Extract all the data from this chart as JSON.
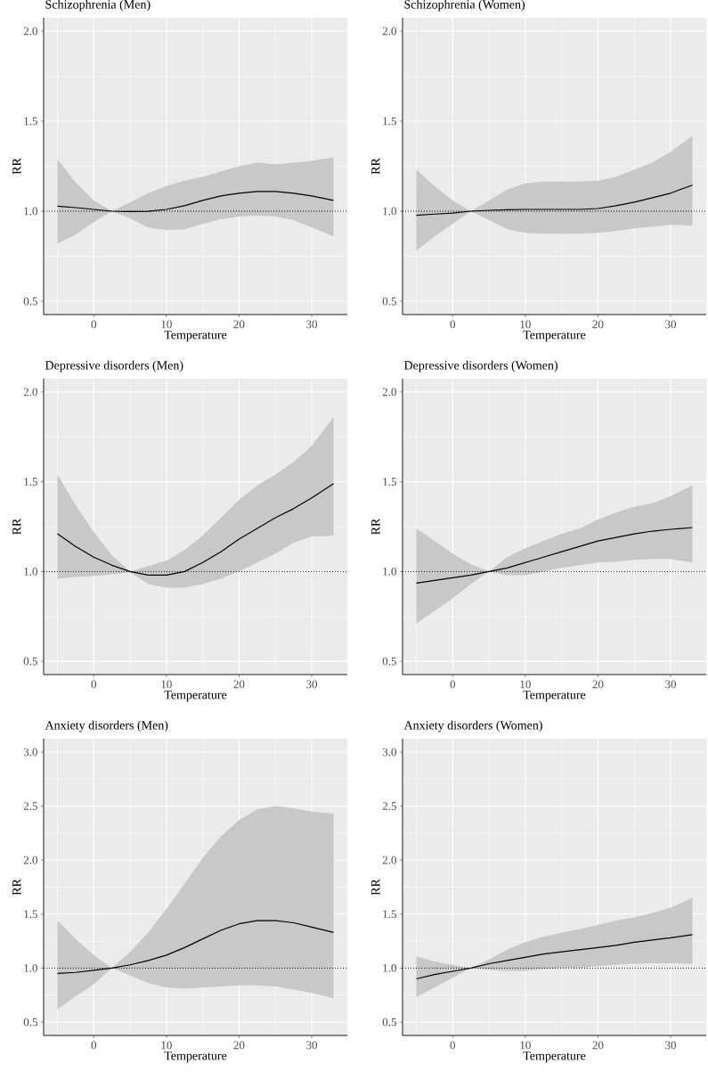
{
  "chart_data": [
    {
      "type": "line",
      "title": "Schizophrenia (Men)",
      "xlabel": "Temperature",
      "ylabel": "RR",
      "grid": true,
      "x": [
        -5,
        -2.5,
        0,
        2.5,
        5,
        7.5,
        10,
        12.5,
        15,
        17.5,
        20,
        22.5,
        25,
        27.5,
        30,
        33
      ],
      "series": [
        {
          "color": "#000000",
          "values": [
            1.028,
            1.02,
            1.01,
            1.0,
            0.998,
            0.999,
            1.01,
            1.03,
            1.06,
            1.085,
            1.1,
            1.11,
            1.11,
            1.1,
            1.085,
            1.06
          ],
          "lower": [
            0.82,
            0.87,
            0.94,
            1.0,
            0.96,
            0.91,
            0.895,
            0.9,
            0.93,
            0.955,
            0.97,
            0.975,
            0.97,
            0.95,
            0.91,
            0.86
          ],
          "upper": [
            1.29,
            1.16,
            1.06,
            1.0,
            1.05,
            1.1,
            1.14,
            1.17,
            1.19,
            1.22,
            1.25,
            1.27,
            1.26,
            1.27,
            1.28,
            1.3
          ]
        }
      ],
      "xlim": [
        -6.9,
        34.9
      ],
      "ylim": [
        0.426,
        2.074
      ],
      "xticks": [
        0,
        {
          "value": 5,
          "label": null
        },
        10,
        {
          "value": 15,
          "label": null
        },
        20,
        {
          "value": 25,
          "label": null
        },
        30,
        {
          "value": -5,
          "label": null
        }
      ],
      "yticks": [
        0.5,
        {
          "value": 0.75,
          "label": null
        },
        {
          "value": 1.0,
          "label": "1.0"
        },
        {
          "value": 1.25,
          "label": null
        },
        1.5,
        {
          "value": 1.75,
          "label": null
        },
        {
          "value": 2.0,
          "label": "2.0"
        }
      ],
      "ref_lines": [
        {
          "axis": "y",
          "value": 1,
          "line_style": "dotted",
          "color": "#000000"
        }
      ]
    },
    {
      "type": "line",
      "title": "Schizophrenia (Women)",
      "xlabel": "Temperature",
      "ylabel": "RR",
      "grid": true,
      "x": [
        -5,
        -2.5,
        0,
        2.5,
        5,
        7.5,
        10,
        12.5,
        15,
        17.5,
        20,
        22.5,
        25,
        27.5,
        30,
        33
      ],
      "series": [
        {
          "color": "#000000",
          "values": [
            0.977,
            0.984,
            0.99,
            1.0,
            1.005,
            1.008,
            1.01,
            1.01,
            1.01,
            1.01,
            1.015,
            1.03,
            1.05,
            1.075,
            1.1,
            1.145
          ],
          "lower": [
            0.78,
            0.86,
            0.93,
            1.0,
            0.95,
            0.9,
            0.88,
            0.875,
            0.875,
            0.875,
            0.88,
            0.89,
            0.905,
            0.915,
            0.925,
            0.92
          ],
          "upper": [
            1.23,
            1.14,
            1.06,
            1.0,
            1.06,
            1.12,
            1.155,
            1.165,
            1.165,
            1.165,
            1.17,
            1.19,
            1.23,
            1.27,
            1.33,
            1.42
          ]
        }
      ],
      "xlim": [
        -6.9,
        34.9
      ],
      "ylim": [
        0.426,
        2.074
      ],
      "xticks": [
        0,
        {
          "value": 5,
          "label": null
        },
        10,
        {
          "value": 15,
          "label": null
        },
        20,
        {
          "value": 25,
          "label": null
        },
        30,
        {
          "value": -5,
          "label": null
        }
      ],
      "yticks": [
        0.5,
        {
          "value": 0.75,
          "label": null
        },
        {
          "value": 1.0,
          "label": "1.0"
        },
        {
          "value": 1.25,
          "label": null
        },
        1.5,
        {
          "value": 1.75,
          "label": null
        },
        {
          "value": 2.0,
          "label": "2.0"
        }
      ],
      "ref_lines": [
        {
          "axis": "y",
          "value": 1,
          "line_style": "dotted",
          "color": "#000000"
        }
      ]
    },
    {
      "type": "line",
      "title": "Depressive disorders (Men)",
      "xlabel": "Temperature",
      "ylabel": "RR",
      "grid": true,
      "x": [
        -5,
        -2.5,
        0,
        2.5,
        5,
        7.5,
        10,
        12.5,
        15,
        17.5,
        20,
        22.5,
        25,
        27.5,
        30,
        33
      ],
      "series": [
        {
          "color": "#000000",
          "values": [
            1.21,
            1.14,
            1.08,
            1.035,
            1.0,
            0.98,
            0.98,
            1.0,
            1.05,
            1.11,
            1.18,
            1.24,
            1.3,
            1.35,
            1.41,
            1.49
          ],
          "lower": [
            0.96,
            0.97,
            0.975,
            0.985,
            0.995,
            0.93,
            0.91,
            0.91,
            0.93,
            0.96,
            1.0,
            1.05,
            1.1,
            1.16,
            1.195,
            1.2
          ],
          "upper": [
            1.54,
            1.37,
            1.22,
            1.09,
            1.0,
            1.03,
            1.06,
            1.12,
            1.2,
            1.3,
            1.4,
            1.48,
            1.54,
            1.61,
            1.7,
            1.86
          ]
        }
      ],
      "xlim": [
        -6.9,
        34.9
      ],
      "ylim": [
        0.426,
        2.074
      ],
      "xticks": [
        0,
        {
          "value": 5,
          "label": null
        },
        10,
        {
          "value": 15,
          "label": null
        },
        20,
        {
          "value": 25,
          "label": null
        },
        30,
        {
          "value": -5,
          "label": null
        }
      ],
      "yticks": [
        0.5,
        {
          "value": 0.75,
          "label": null
        },
        {
          "value": 1.0,
          "label": "1.0"
        },
        {
          "value": 1.25,
          "label": null
        },
        1.5,
        {
          "value": 1.75,
          "label": null
        },
        {
          "value": 2.0,
          "label": "2.0"
        }
      ],
      "ref_lines": [
        {
          "axis": "y",
          "value": 1,
          "line_style": "dotted",
          "color": "#000000"
        }
      ]
    },
    {
      "type": "line",
      "title": "Depressive disorders (Women)",
      "xlabel": "Temperature",
      "ylabel": "RR",
      "grid": true,
      "x": [
        -5,
        -2.5,
        0,
        2.5,
        5,
        7.5,
        10,
        12.5,
        15,
        17.5,
        20,
        22.5,
        25,
        27.5,
        30,
        33
      ],
      "series": [
        {
          "color": "#000000",
          "values": [
            0.935,
            0.95,
            0.965,
            0.98,
            1.0,
            1.02,
            1.05,
            1.08,
            1.11,
            1.14,
            1.17,
            1.19,
            1.21,
            1.225,
            1.235,
            1.245
          ],
          "lower": [
            0.71,
            0.78,
            0.85,
            0.93,
            1.0,
            0.98,
            0.98,
            1.0,
            1.02,
            1.035,
            1.05,
            1.055,
            1.065,
            1.07,
            1.07,
            1.05
          ],
          "upper": [
            1.24,
            1.17,
            1.1,
            1.04,
            1.0,
            1.08,
            1.13,
            1.17,
            1.21,
            1.24,
            1.29,
            1.33,
            1.36,
            1.38,
            1.42,
            1.48
          ]
        }
      ],
      "xlim": [
        -6.9,
        34.9
      ],
      "ylim": [
        0.426,
        2.074
      ],
      "xticks": [
        0,
        {
          "value": 5,
          "label": null
        },
        10,
        {
          "value": 15,
          "label": null
        },
        20,
        {
          "value": 25,
          "label": null
        },
        30,
        {
          "value": -5,
          "label": null
        }
      ],
      "yticks": [
        0.5,
        {
          "value": 0.75,
          "label": null
        },
        {
          "value": 1.0,
          "label": "1.0"
        },
        {
          "value": 1.25,
          "label": null
        },
        1.5,
        {
          "value": 1.75,
          "label": null
        },
        {
          "value": 2.0,
          "label": "2.0"
        }
      ],
      "ref_lines": [
        {
          "axis": "y",
          "value": 1,
          "line_style": "dotted",
          "color": "#000000"
        }
      ]
    },
    {
      "type": "line",
      "title": "Anxiety disorders (Men)",
      "xlabel": "Temperature",
      "ylabel": "RR",
      "grid": true,
      "x": [
        -5,
        -2.5,
        0,
        2.5,
        5,
        7.5,
        10,
        12.5,
        15,
        17.5,
        20,
        22.5,
        25,
        27.5,
        30,
        33
      ],
      "series": [
        {
          "color": "#000000",
          "values": [
            0.95,
            0.96,
            0.98,
            1.0,
            1.03,
            1.07,
            1.12,
            1.19,
            1.27,
            1.35,
            1.41,
            1.44,
            1.44,
            1.42,
            1.38,
            1.33
          ],
          "lower": [
            0.62,
            0.74,
            0.85,
            1.0,
            0.93,
            0.86,
            0.82,
            0.81,
            0.82,
            0.83,
            0.84,
            0.84,
            0.83,
            0.8,
            0.77,
            0.72
          ],
          "upper": [
            1.44,
            1.27,
            1.12,
            1.0,
            1.15,
            1.33,
            1.55,
            1.78,
            2.02,
            2.22,
            2.37,
            2.47,
            2.5,
            2.48,
            2.45,
            2.43
          ]
        }
      ],
      "xlim": [
        -6.9,
        34.9
      ],
      "ylim": [
        0.376,
        3.124
      ],
      "xticks": [
        0,
        {
          "value": 5,
          "label": null
        },
        10,
        {
          "value": 15,
          "label": null
        },
        20,
        {
          "value": 25,
          "label": null
        },
        30,
        {
          "value": -5,
          "label": null
        }
      ],
      "yticks": [
        0.5,
        {
          "value": 0.75,
          "label": null
        },
        {
          "value": 1.0,
          "label": "1.0"
        },
        {
          "value": 1.25,
          "label": null
        },
        1.5,
        {
          "value": 1.75,
          "label": null
        },
        {
          "value": 2.0,
          "label": "2.0"
        },
        {
          "value": 2.25,
          "label": null
        },
        2.5,
        {
          "value": 2.75,
          "label": null
        },
        {
          "value": 3.0,
          "label": "3.0"
        }
      ],
      "ref_lines": [
        {
          "axis": "y",
          "value": 1,
          "line_style": "dotted",
          "color": "#000000"
        }
      ]
    },
    {
      "type": "line",
      "title": "Anxiety disorders (Women)",
      "xlabel": "Temperature",
      "ylabel": "RR",
      "grid": true,
      "x": [
        -5,
        -2.5,
        0,
        2.5,
        5,
        7.5,
        10,
        12.5,
        15,
        17.5,
        20,
        22.5,
        25,
        27.5,
        30,
        33
      ],
      "series": [
        {
          "color": "#000000",
          "values": [
            0.9,
            0.94,
            0.97,
            1.0,
            1.04,
            1.07,
            1.1,
            1.13,
            1.15,
            1.17,
            1.19,
            1.21,
            1.24,
            1.26,
            1.28,
            1.31
          ],
          "lower": [
            0.73,
            0.82,
            0.91,
            1.0,
            0.985,
            0.975,
            0.975,
            0.99,
            1.0,
            1.0,
            1.02,
            1.03,
            1.04,
            1.045,
            1.045,
            1.04
          ],
          "upper": [
            1.11,
            1.06,
            1.03,
            1.0,
            1.08,
            1.17,
            1.24,
            1.29,
            1.33,
            1.36,
            1.4,
            1.44,
            1.47,
            1.51,
            1.56,
            1.65
          ]
        }
      ],
      "xlim": [
        -6.9,
        34.9
      ],
      "ylim": [
        0.376,
        3.124
      ],
      "xticks": [
        0,
        {
          "value": 5,
          "label": null
        },
        10,
        {
          "value": 15,
          "label": null
        },
        20,
        {
          "value": 25,
          "label": null
        },
        30,
        {
          "value": -5,
          "label": null
        }
      ],
      "yticks": [
        0.5,
        {
          "value": 0.75,
          "label": null
        },
        {
          "value": 1.0,
          "label": "1.0"
        },
        {
          "value": 1.25,
          "label": null
        },
        1.5,
        {
          "value": 1.75,
          "label": null
        },
        {
          "value": 2.0,
          "label": "2.0"
        },
        {
          "value": 2.25,
          "label": null
        },
        2.5,
        {
          "value": 2.75,
          "label": null
        },
        {
          "value": 3.0,
          "label": "3.0"
        }
      ],
      "ref_lines": [
        {
          "axis": "y",
          "value": 1,
          "line_style": "dotted",
          "color": "#000000"
        }
      ]
    }
  ]
}
